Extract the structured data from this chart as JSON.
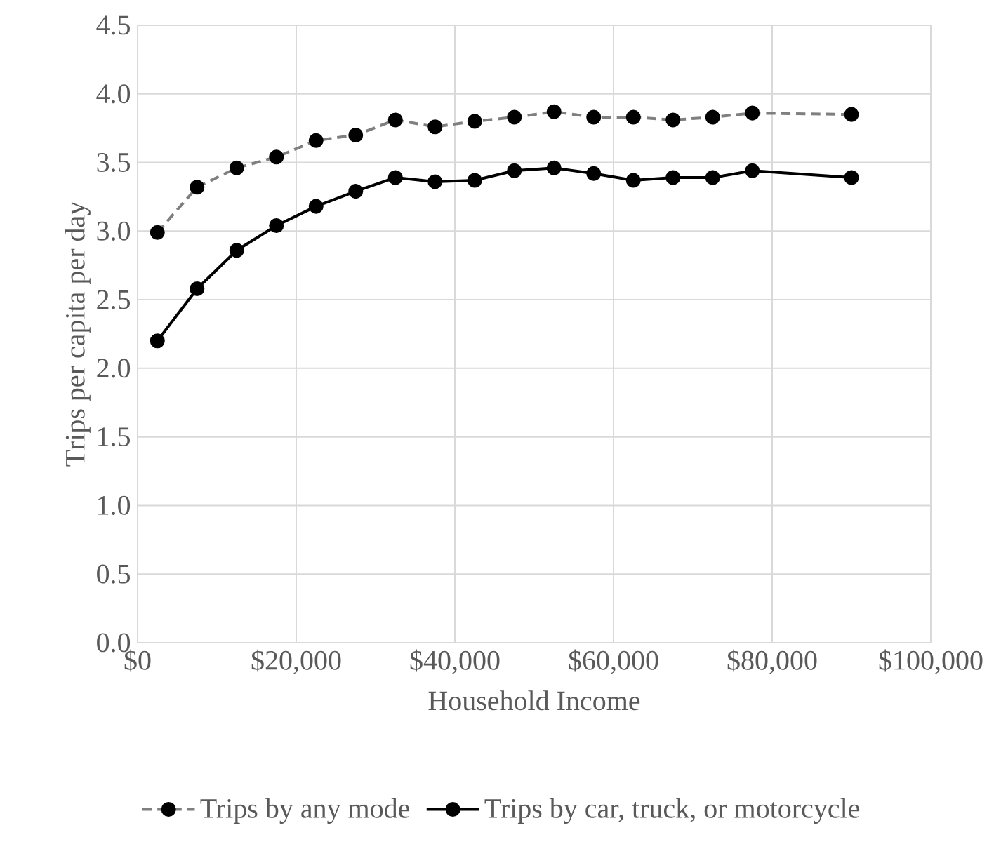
{
  "chart_data": {
    "type": "line",
    "xlabel": "Household Income",
    "ylabel": "Trips per capita per day",
    "x": [
      2500,
      7500,
      12500,
      17500,
      22500,
      27500,
      32500,
      37500,
      42500,
      47500,
      52500,
      57500,
      62500,
      67500,
      72500,
      77500,
      90000
    ],
    "series": [
      {
        "name": "Trips by any mode",
        "color": "#7f7f7f",
        "line_style": "dashed",
        "values": [
          2.99,
          3.32,
          3.46,
          3.54,
          3.66,
          3.7,
          3.81,
          3.76,
          3.8,
          3.83,
          3.87,
          3.83,
          3.83,
          3.81,
          3.83,
          3.86,
          3.85
        ]
      },
      {
        "name": "Trips by car, truck, or motorcycle",
        "color": "#000000",
        "line_style": "solid",
        "values": [
          2.2,
          2.58,
          2.86,
          3.04,
          3.18,
          3.29,
          3.39,
          3.36,
          3.37,
          3.44,
          3.46,
          3.42,
          3.37,
          3.39,
          3.39,
          3.44,
          3.39
        ]
      }
    ],
    "xlim": [
      0,
      100000
    ],
    "xticks": [
      {
        "value": 0,
        "label": "$0"
      },
      {
        "value": 20000,
        "label": "$20,000"
      },
      {
        "value": 40000,
        "label": "$40,000"
      },
      {
        "value": 60000,
        "label": "$60,000"
      },
      {
        "value": 80000,
        "label": "$80,000"
      },
      {
        "value": 100000,
        "label": "$100,000"
      }
    ],
    "ylim": [
      0,
      4.5
    ],
    "yticks": [
      {
        "value": 0,
        "label": "0.0"
      },
      {
        "value": 0.5,
        "label": "0.5"
      },
      {
        "value": 1,
        "label": "1.0"
      },
      {
        "value": 1.5,
        "label": "1.5"
      },
      {
        "value": 2,
        "label": "2.0"
      },
      {
        "value": 2.5,
        "label": "2.5"
      },
      {
        "value": 3,
        "label": "3.0"
      },
      {
        "value": 3.5,
        "label": "3.5"
      },
      {
        "value": 4,
        "label": "4.0"
      },
      {
        "value": 4.5,
        "label": "4.5"
      }
    ],
    "grid": true,
    "legend": "bottom",
    "marker": "circle"
  }
}
